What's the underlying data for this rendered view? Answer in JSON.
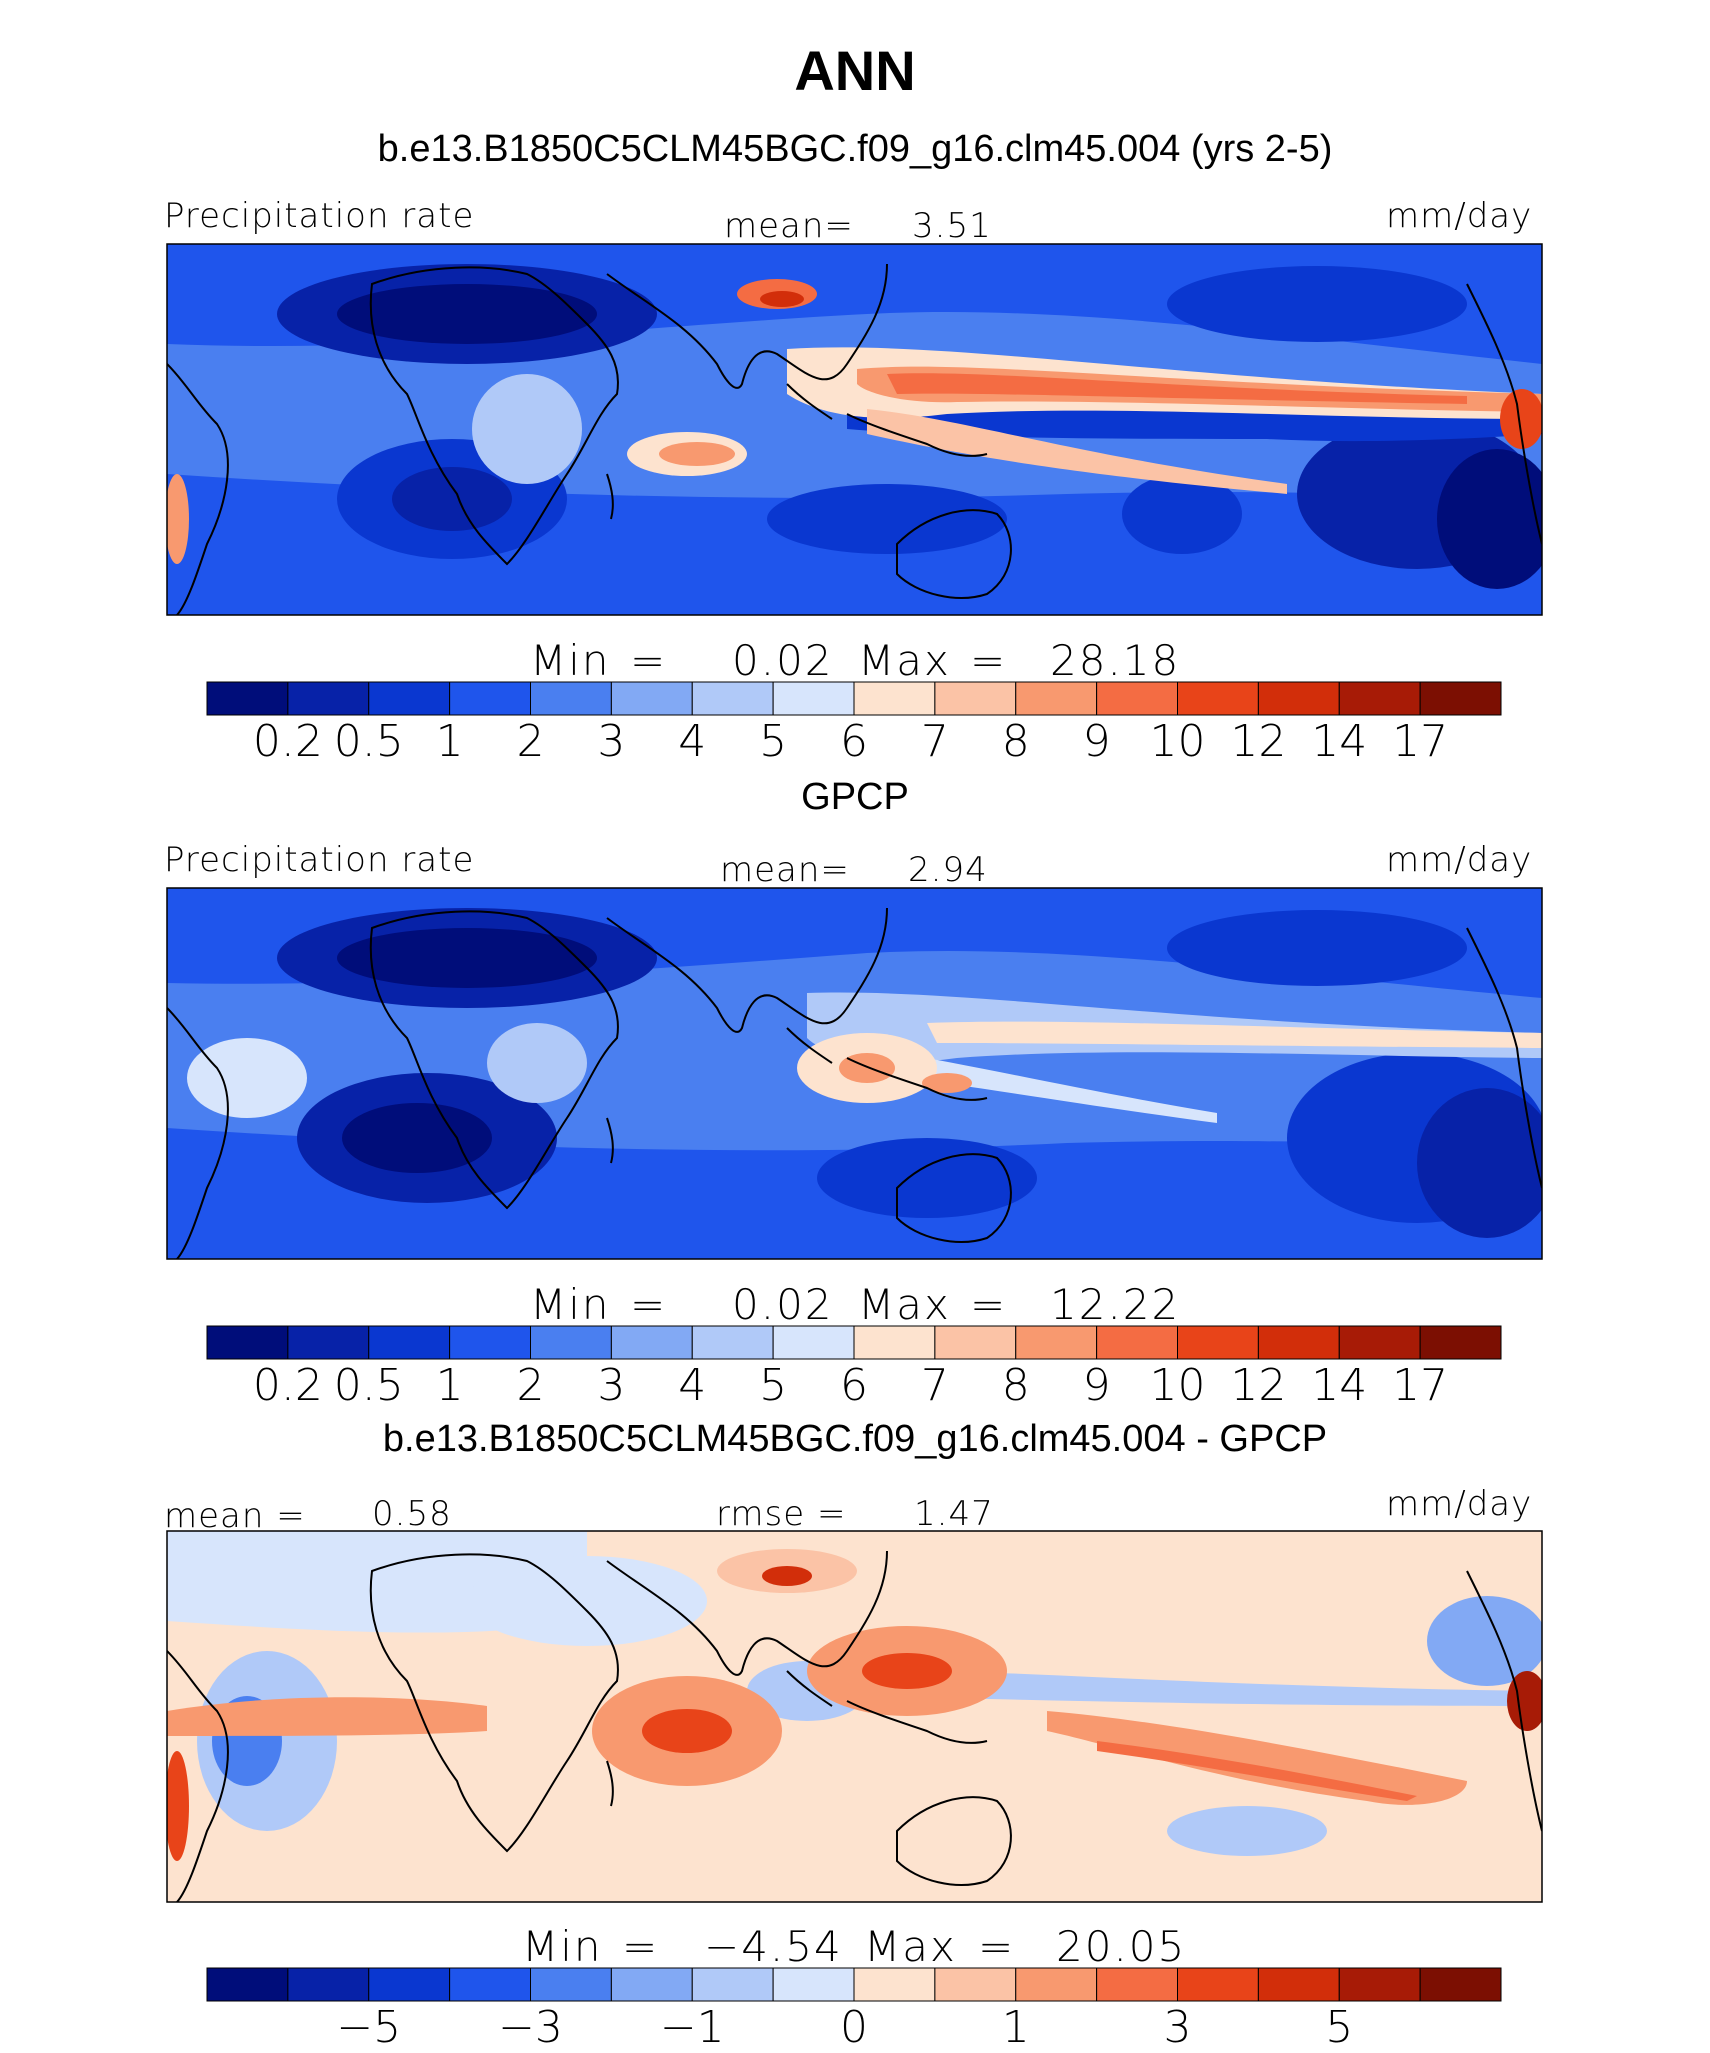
{
  "header": {
    "title": "ANN",
    "subtitle": "b.e13.B1850C5CLM45BGC.f09_g16.clm45.004 (yrs 2-5)"
  },
  "panels": [
    {
      "title": "",
      "left_label": "Precipitation rate",
      "center_label": "mean=",
      "center_value": "3.51",
      "units": "mm/day",
      "minmax": {
        "min_label": "Min",
        "eq": "=",
        "min": "0.02",
        "max_label": "Max",
        "max": "28.18"
      },
      "colorbar_ticks": [
        "0.2",
        "0.5",
        "1",
        "2",
        "3",
        "4",
        "5",
        "6",
        "7",
        "8",
        "9",
        "10",
        "12",
        "14",
        "17"
      ]
    },
    {
      "title": "GPCP",
      "left_label": "Precipitation rate",
      "center_label": "mean=",
      "center_value": "2.94",
      "units": "mm/day",
      "minmax": {
        "min_label": "Min",
        "eq": "=",
        "min": "0.02",
        "max_label": "Max",
        "max": "12.22"
      },
      "colorbar_ticks": [
        "0.2",
        "0.5",
        "1",
        "2",
        "3",
        "4",
        "5",
        "6",
        "7",
        "8",
        "9",
        "10",
        "12",
        "14",
        "17"
      ]
    },
    {
      "title": "b.e13.B1850C5CLM45BGC.f09_g16.clm45.004 - GPCP",
      "left_label": "mean =",
      "left_value": "0.58",
      "center_label": "rmse =",
      "center_value": "1.47",
      "units": "mm/day",
      "minmax": {
        "min_label": "Min",
        "eq": "=",
        "min": "−4.54",
        "max_label": "Max",
        "max": "20.05"
      },
      "colorbar_ticks": [
        "−5",
        "−3",
        "−1",
        "0",
        "1",
        "3",
        "5"
      ]
    }
  ],
  "colors": {
    "levels_seq": [
      "#000d7a",
      "#0722a8",
      "#0a37d0",
      "#1f55ec",
      "#4a7ff0",
      "#82a9f4",
      "#b0c9f8",
      "#d7e5fc",
      "#fde3cf",
      "#fbc3a6",
      "#f8996f",
      "#f46c43",
      "#e84419",
      "#d22e0a",
      "#a71b06",
      "#7c0f02"
    ]
  },
  "chart_data": [
    {
      "type": "heatmap",
      "title": "b.e13.B1850C5CLM45BGC.f09_g16.clm45.004 (yrs 2-5)",
      "variable": "Precipitation rate",
      "units": "mm/day",
      "mean": 3.51,
      "min": 0.02,
      "max": 28.18,
      "colorbar_levels": [
        0.2,
        0.5,
        1,
        2,
        3,
        4,
        5,
        6,
        7,
        8,
        9,
        10,
        12,
        14,
        17
      ]
    },
    {
      "type": "heatmap",
      "title": "GPCP",
      "variable": "Precipitation rate",
      "units": "mm/day",
      "mean": 2.94,
      "min": 0.02,
      "max": 12.22,
      "colorbar_levels": [
        0.2,
        0.5,
        1,
        2,
        3,
        4,
        5,
        6,
        7,
        8,
        9,
        10,
        12,
        14,
        17
      ]
    },
    {
      "type": "heatmap",
      "title": "b.e13.B1850C5CLM45BGC.f09_g16.clm45.004 - GPCP",
      "units": "mm/day",
      "mean": 0.58,
      "rmse": 1.47,
      "min": -4.54,
      "max": 20.05,
      "colorbar_ticks": [
        -5,
        -3,
        -1,
        0,
        1,
        3,
        5
      ]
    }
  ]
}
